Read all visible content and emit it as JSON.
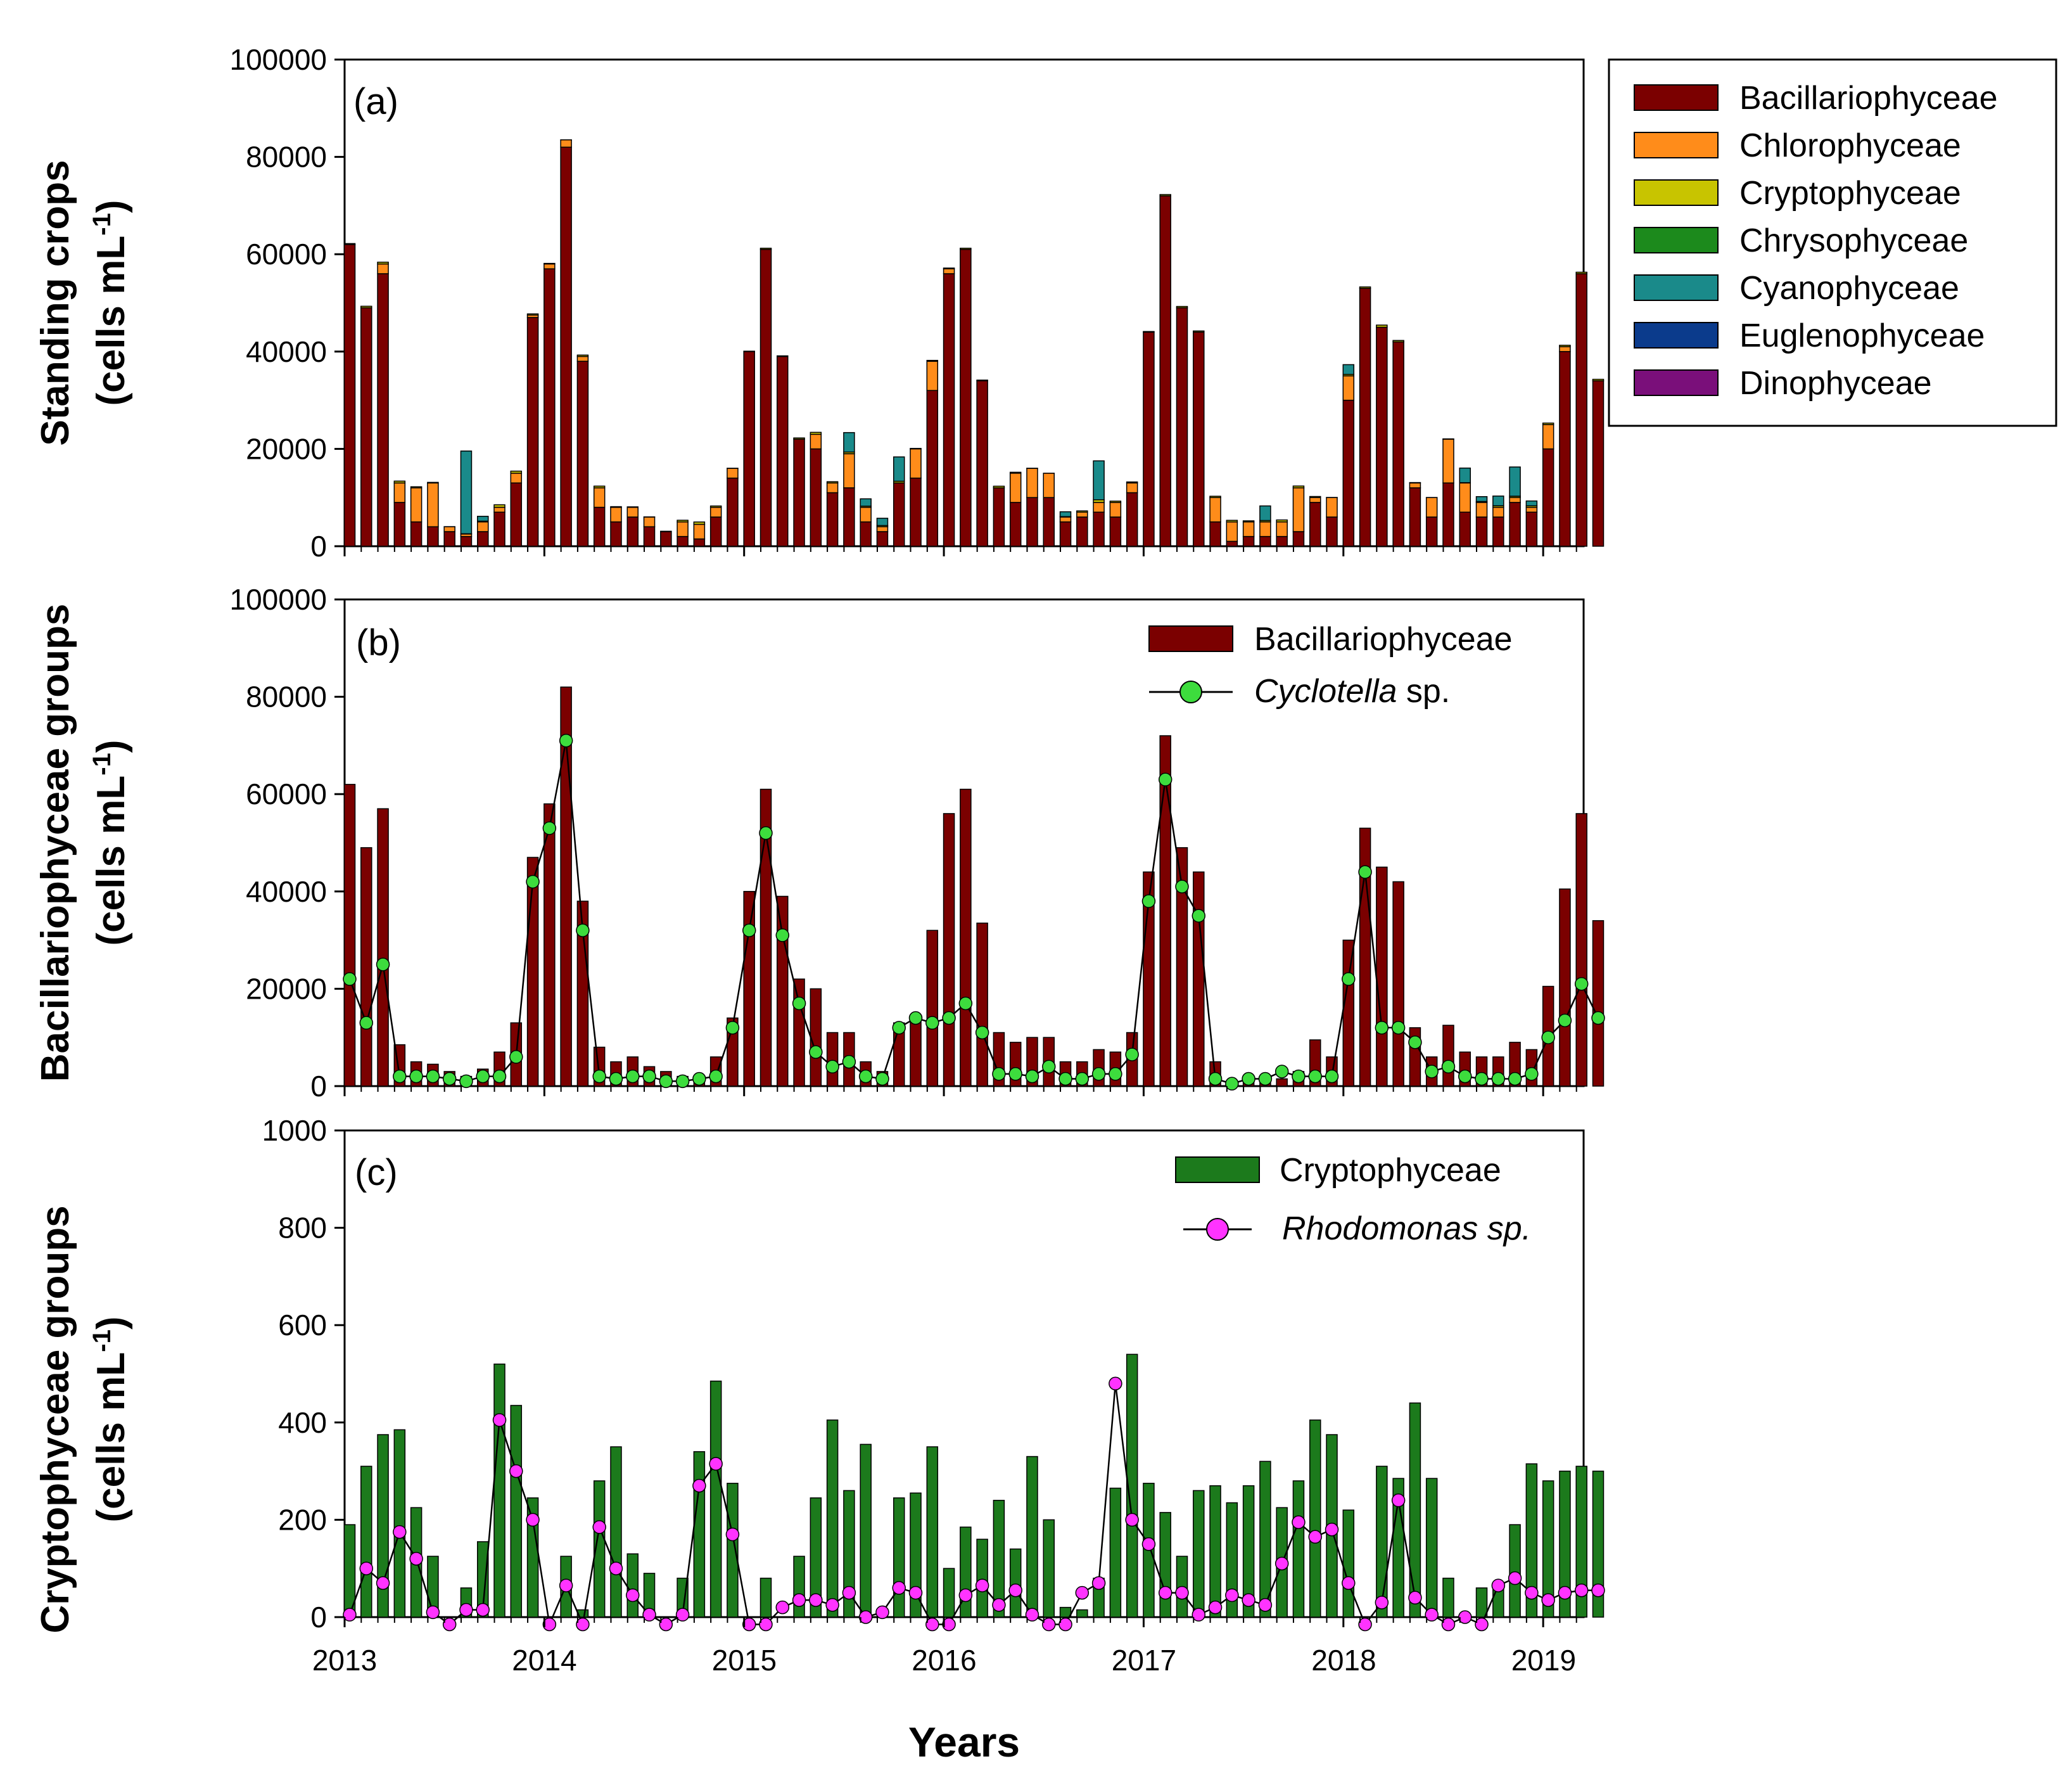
{
  "chart_data": [
    {
      "panel": "a",
      "panel_label": "(a)",
      "type": "bar",
      "stacked": true,
      "ylabel_line1": "Standing crops",
      "ylabel_line2": "(cells mL",
      "ylabel_sup": "-1",
      "ylabel_close": ")",
      "ylim": [
        0,
        100000
      ],
      "yticks": [
        0,
        20000,
        40000,
        60000,
        80000,
        100000
      ],
      "x_start": 2013.0,
      "x_step": 0.0833,
      "legend_position": "outside-right",
      "series": [
        {
          "name": "Bacillariophyceae",
          "color": "#7b0000",
          "values": [
            62000,
            49000,
            56000,
            9000,
            5000,
            4000,
            3000,
            2000,
            3000,
            7000,
            13000,
            47000,
            57000,
            82000,
            38000,
            8000,
            5000,
            6000,
            4000,
            3000,
            2000,
            1500,
            6000,
            14000,
            40000,
            61000,
            39000,
            22000,
            20000,
            11000,
            12000,
            5000,
            3000,
            13000,
            14000,
            32000,
            56000,
            61000,
            34000,
            12000,
            9000,
            10000,
            10000,
            5000,
            6000,
            7000,
            6000,
            11000,
            44000,
            72000,
            49000,
            44000,
            5000,
            1000,
            2000,
            2000,
            2000,
            3000,
            9000,
            6000,
            30000,
            53000,
            45000,
            42000,
            12000,
            6000,
            13000,
            7000,
            6000,
            6000,
            9000,
            7000,
            20000,
            40000,
            56000,
            34000
          ]
        },
        {
          "name": "Chlorophyceae",
          "color": "#ff8c1a",
          "values": [
            0,
            0,
            2000,
            4000,
            7000,
            9000,
            1000,
            500,
            2000,
            1000,
            2000,
            500,
            1000,
            1500,
            1000,
            4000,
            3000,
            2000,
            2000,
            0,
            3000,
            3000,
            2000,
            2000,
            0,
            0,
            0,
            0,
            3000,
            2000,
            7000,
            3000,
            1000,
            0,
            6000,
            6000,
            1000,
            0,
            0,
            0,
            6000,
            6000,
            5000,
            1000,
            1000,
            2000,
            3000,
            2000,
            0,
            0,
            0,
            0,
            5000,
            4000,
            3000,
            3000,
            3000,
            9000,
            1000,
            4000,
            5000,
            0,
            0,
            0,
            1000,
            4000,
            9000,
            6000,
            3000,
            2000,
            1000,
            1000,
            5000,
            1000,
            0,
            0
          ]
        },
        {
          "name": "Cryptophyceae",
          "color": "#c8c400",
          "values": [
            190,
            310,
            370,
            380,
            220,
            120,
            20,
            60,
            150,
            520,
            430,
            240,
            120,
            10,
            280,
            350,
            130,
            90,
            30,
            80,
            340,
            480,
            270,
            20,
            80,
            240,
            120,
            250,
            400,
            260,
            350,
            240,
            250,
            350,
            100,
            190,
            160,
            240,
            140,
            330,
            200,
            20,
            10,
            80,
            260,
            540,
            270,
            210,
            120,
            260,
            270,
            230,
            270,
            320,
            220,
            280,
            400,
            370,
            220,
            20,
            310,
            280,
            440,
            280,
            80,
            10,
            60,
            60,
            190,
            310,
            280,
            300,
            310,
            300,
            310,
            300
          ]
        },
        {
          "name": "Chrysophyceae",
          "color": "#1c8a1c",
          "values": [
            0,
            0,
            0,
            0,
            0,
            0,
            0,
            0,
            0,
            0,
            0,
            0,
            0,
            0,
            0,
            0,
            0,
            0,
            0,
            0,
            0,
            0,
            0,
            0,
            0,
            0,
            0,
            0,
            0,
            0,
            0,
            0,
            0,
            0,
            0,
            0,
            0,
            0,
            0,
            0,
            0,
            0,
            0,
            0,
            0,
            0,
            0,
            0,
            0,
            0,
            0,
            0,
            0,
            0,
            0,
            0,
            0,
            0,
            0,
            0,
            0,
            0,
            0,
            0,
            0,
            0,
            0,
            0,
            0,
            0,
            0,
            0,
            0,
            0,
            0,
            0
          ]
        },
        {
          "name": "Cyanophyceae",
          "color": "#1a8a8a",
          "values": [
            0,
            0,
            0,
            0,
            0,
            0,
            0,
            17000,
            1000,
            0,
            0,
            0,
            0,
            0,
            0,
            0,
            0,
            0,
            0,
            0,
            0,
            0,
            0,
            0,
            0,
            0,
            0,
            0,
            0,
            0,
            4000,
            1500,
            1500,
            5000,
            0,
            0,
            0,
            0,
            0,
            0,
            0,
            0,
            0,
            1000,
            0,
            8000,
            0,
            0,
            0,
            0,
            0,
            0,
            0,
            0,
            0,
            3000,
            0,
            0,
            0,
            0,
            2000,
            0,
            0,
            0,
            0,
            0,
            0,
            3000,
            1000,
            2000,
            6000,
            1000,
            0,
            0,
            0,
            0
          ]
        },
        {
          "name": "Euglenophyceae",
          "color": "#0b3b8c",
          "values": [
            0,
            0,
            0,
            0,
            0,
            0,
            0,
            0,
            0,
            0,
            0,
            0,
            0,
            0,
            0,
            0,
            0,
            0,
            0,
            0,
            0,
            0,
            0,
            0,
            0,
            0,
            0,
            0,
            0,
            0,
            0,
            0,
            0,
            0,
            0,
            0,
            0,
            0,
            0,
            0,
            0,
            0,
            0,
            0,
            0,
            0,
            0,
            0,
            0,
            0,
            0,
            0,
            0,
            0,
            0,
            0,
            0,
            0,
            0,
            0,
            0,
            0,
            0,
            0,
            0,
            0,
            0,
            0,
            0,
            0,
            0,
            0,
            0,
            0,
            0,
            0
          ]
        },
        {
          "name": "Dinophyceae",
          "color": "#7a0f7a",
          "values": [
            0,
            0,
            0,
            0,
            0,
            0,
            0,
            0,
            0,
            0,
            0,
            0,
            0,
            0,
            0,
            0,
            0,
            0,
            0,
            0,
            0,
            0,
            0,
            0,
            0,
            0,
            0,
            0,
            0,
            0,
            0,
            0,
            0,
            0,
            0,
            0,
            0,
            0,
            0,
            0,
            0,
            0,
            0,
            0,
            0,
            0,
            0,
            0,
            0,
            0,
            0,
            0,
            0,
            0,
            0,
            0,
            0,
            0,
            0,
            0,
            0,
            0,
            0,
            0,
            0,
            0,
            0,
            0,
            0,
            0,
            0,
            0,
            0,
            0,
            0,
            0
          ]
        }
      ]
    },
    {
      "panel": "b",
      "panel_label": "(b)",
      "type": "bar+line",
      "ylabel_line1": "Bacillariophyceae groups",
      "ylabel_line2": "(cells mL",
      "ylabel_sup": "-1",
      "ylabel_close": ")",
      "ylim": [
        0,
        100000
      ],
      "yticks": [
        0,
        20000,
        40000,
        60000,
        80000,
        100000
      ],
      "x_start": 2013.0,
      "x_step": 0.0833,
      "legend_position": "top-right",
      "bar_series": {
        "name": "Bacillariophyceae",
        "color": "#7b0000",
        "values": [
          62000,
          49000,
          57000,
          8500,
          5000,
          4500,
          3000,
          2000,
          3500,
          7000,
          13000,
          47000,
          58000,
          82000,
          38000,
          8000,
          5000,
          6000,
          4000,
          3000,
          2000,
          1500,
          6000,
          14000,
          40000,
          61000,
          39000,
          22000,
          20000,
          11000,
          11000,
          5000,
          3000,
          13000,
          14000,
          32000,
          56000,
          61000,
          33500,
          11000,
          9000,
          10000,
          10000,
          5000,
          5000,
          7500,
          7000,
          11000,
          44000,
          72000,
          49000,
          44000,
          5000,
          1000,
          2000,
          2000,
          1500,
          3000,
          9500,
          6000,
          30000,
          53000,
          45000,
          42000,
          12000,
          6000,
          12500,
          7000,
          6000,
          6000,
          9000,
          7500,
          20500,
          40500,
          56000,
          34000
        ]
      },
      "line_series": {
        "name": "Cyclotella",
        "name_suffix": " sp.",
        "color": "#3ddc3d",
        "values": [
          22000,
          13000,
          25000,
          2000,
          2000,
          2000,
          1500,
          1000,
          2000,
          2000,
          6000,
          42000,
          53000,
          71000,
          32000,
          2000,
          1500,
          2000,
          2000,
          1000,
          1000,
          1500,
          2000,
          12000,
          32000,
          52000,
          31000,
          17000,
          7000,
          4000,
          5000,
          2000,
          1500,
          12000,
          14000,
          13000,
          14000,
          17000,
          11000,
          2500,
          2500,
          2000,
          4000,
          1500,
          1500,
          2500,
          2500,
          6500,
          38000,
          63000,
          41000,
          35000,
          1500,
          500,
          1500,
          1500,
          3000,
          2000,
          2000,
          2000,
          22000,
          44000,
          12000,
          12000,
          9000,
          3000,
          4000,
          2000,
          1500,
          1500,
          1500,
          2500,
          10000,
          13500,
          21000,
          14000
        ]
      }
    },
    {
      "panel": "c",
      "panel_label": "(c)",
      "type": "bar+line",
      "ylabel_line1": "Cryptophyceae groups",
      "ylabel_line2": "(cells mL",
      "ylabel_sup": "-1",
      "ylabel_close": ")",
      "xlabel": "Years",
      "ylim": [
        0,
        1000
      ],
      "yticks": [
        0,
        200,
        400,
        600,
        800,
        1000
      ],
      "xticks": [
        "2013",
        "2014",
        "2015",
        "2016",
        "2017",
        "2018",
        "2019"
      ],
      "x_start": 2013.0,
      "x_step": 0.0833,
      "legend_position": "top-right",
      "bar_series": {
        "name": "Cryptophyceae",
        "color": "#1c7a1c",
        "values": [
          190,
          310,
          375,
          385,
          225,
          125,
          0,
          60,
          155,
          520,
          435,
          245,
          0,
          125,
          15,
          280,
          350,
          130,
          90,
          0,
          80,
          340,
          485,
          275,
          0,
          80,
          0,
          125,
          245,
          405,
          260,
          355,
          0,
          245,
          255,
          350,
          100,
          185,
          160,
          240,
          140,
          330,
          200,
          20,
          15,
          80,
          265,
          540,
          275,
          215,
          125,
          260,
          270,
          235,
          270,
          320,
          225,
          280,
          405,
          375,
          220,
          0,
          310,
          285,
          440,
          285,
          80,
          0,
          60,
          60,
          190,
          315,
          280,
          300,
          310,
          300
        ]
      },
      "line_series": {
        "name": "Rhodomonas sp.",
        "color": "#ff33ff",
        "values": [
          5,
          100,
          70,
          175,
          120,
          10,
          -15,
          15,
          15,
          405,
          300,
          200,
          -15,
          65,
          -15,
          185,
          100,
          45,
          5,
          -15,
          5,
          270,
          315,
          170,
          -15,
          -15,
          20,
          35,
          35,
          25,
          50,
          0,
          10,
          60,
          50,
          -15,
          -15,
          45,
          65,
          25,
          55,
          5,
          -15,
          -15,
          50,
          70,
          480,
          200,
          150,
          50,
          50,
          5,
          20,
          45,
          35,
          25,
          110,
          195,
          165,
          180,
          70,
          -15,
          30,
          240,
          40,
          5,
          -15,
          0,
          -15,
          65,
          80,
          50,
          35,
          50,
          55,
          55
        ]
      }
    }
  ],
  "legend_a": {
    "items": [
      {
        "label": "Bacillariophyceae",
        "color": "#7b0000"
      },
      {
        "label": "Chlorophyceae",
        "color": "#ff8c1a"
      },
      {
        "label": "Cryptophyceae",
        "color": "#c8c400"
      },
      {
        "label": "Chrysophyceae",
        "color": "#1c8a1c"
      },
      {
        "label": "Cyanophyceae",
        "color": "#1a8a8a"
      },
      {
        "label": "Euglenophyceae",
        "color": "#0b3b8c"
      },
      {
        "label": "Dinophyceae",
        "color": "#7a0f7a"
      }
    ]
  }
}
